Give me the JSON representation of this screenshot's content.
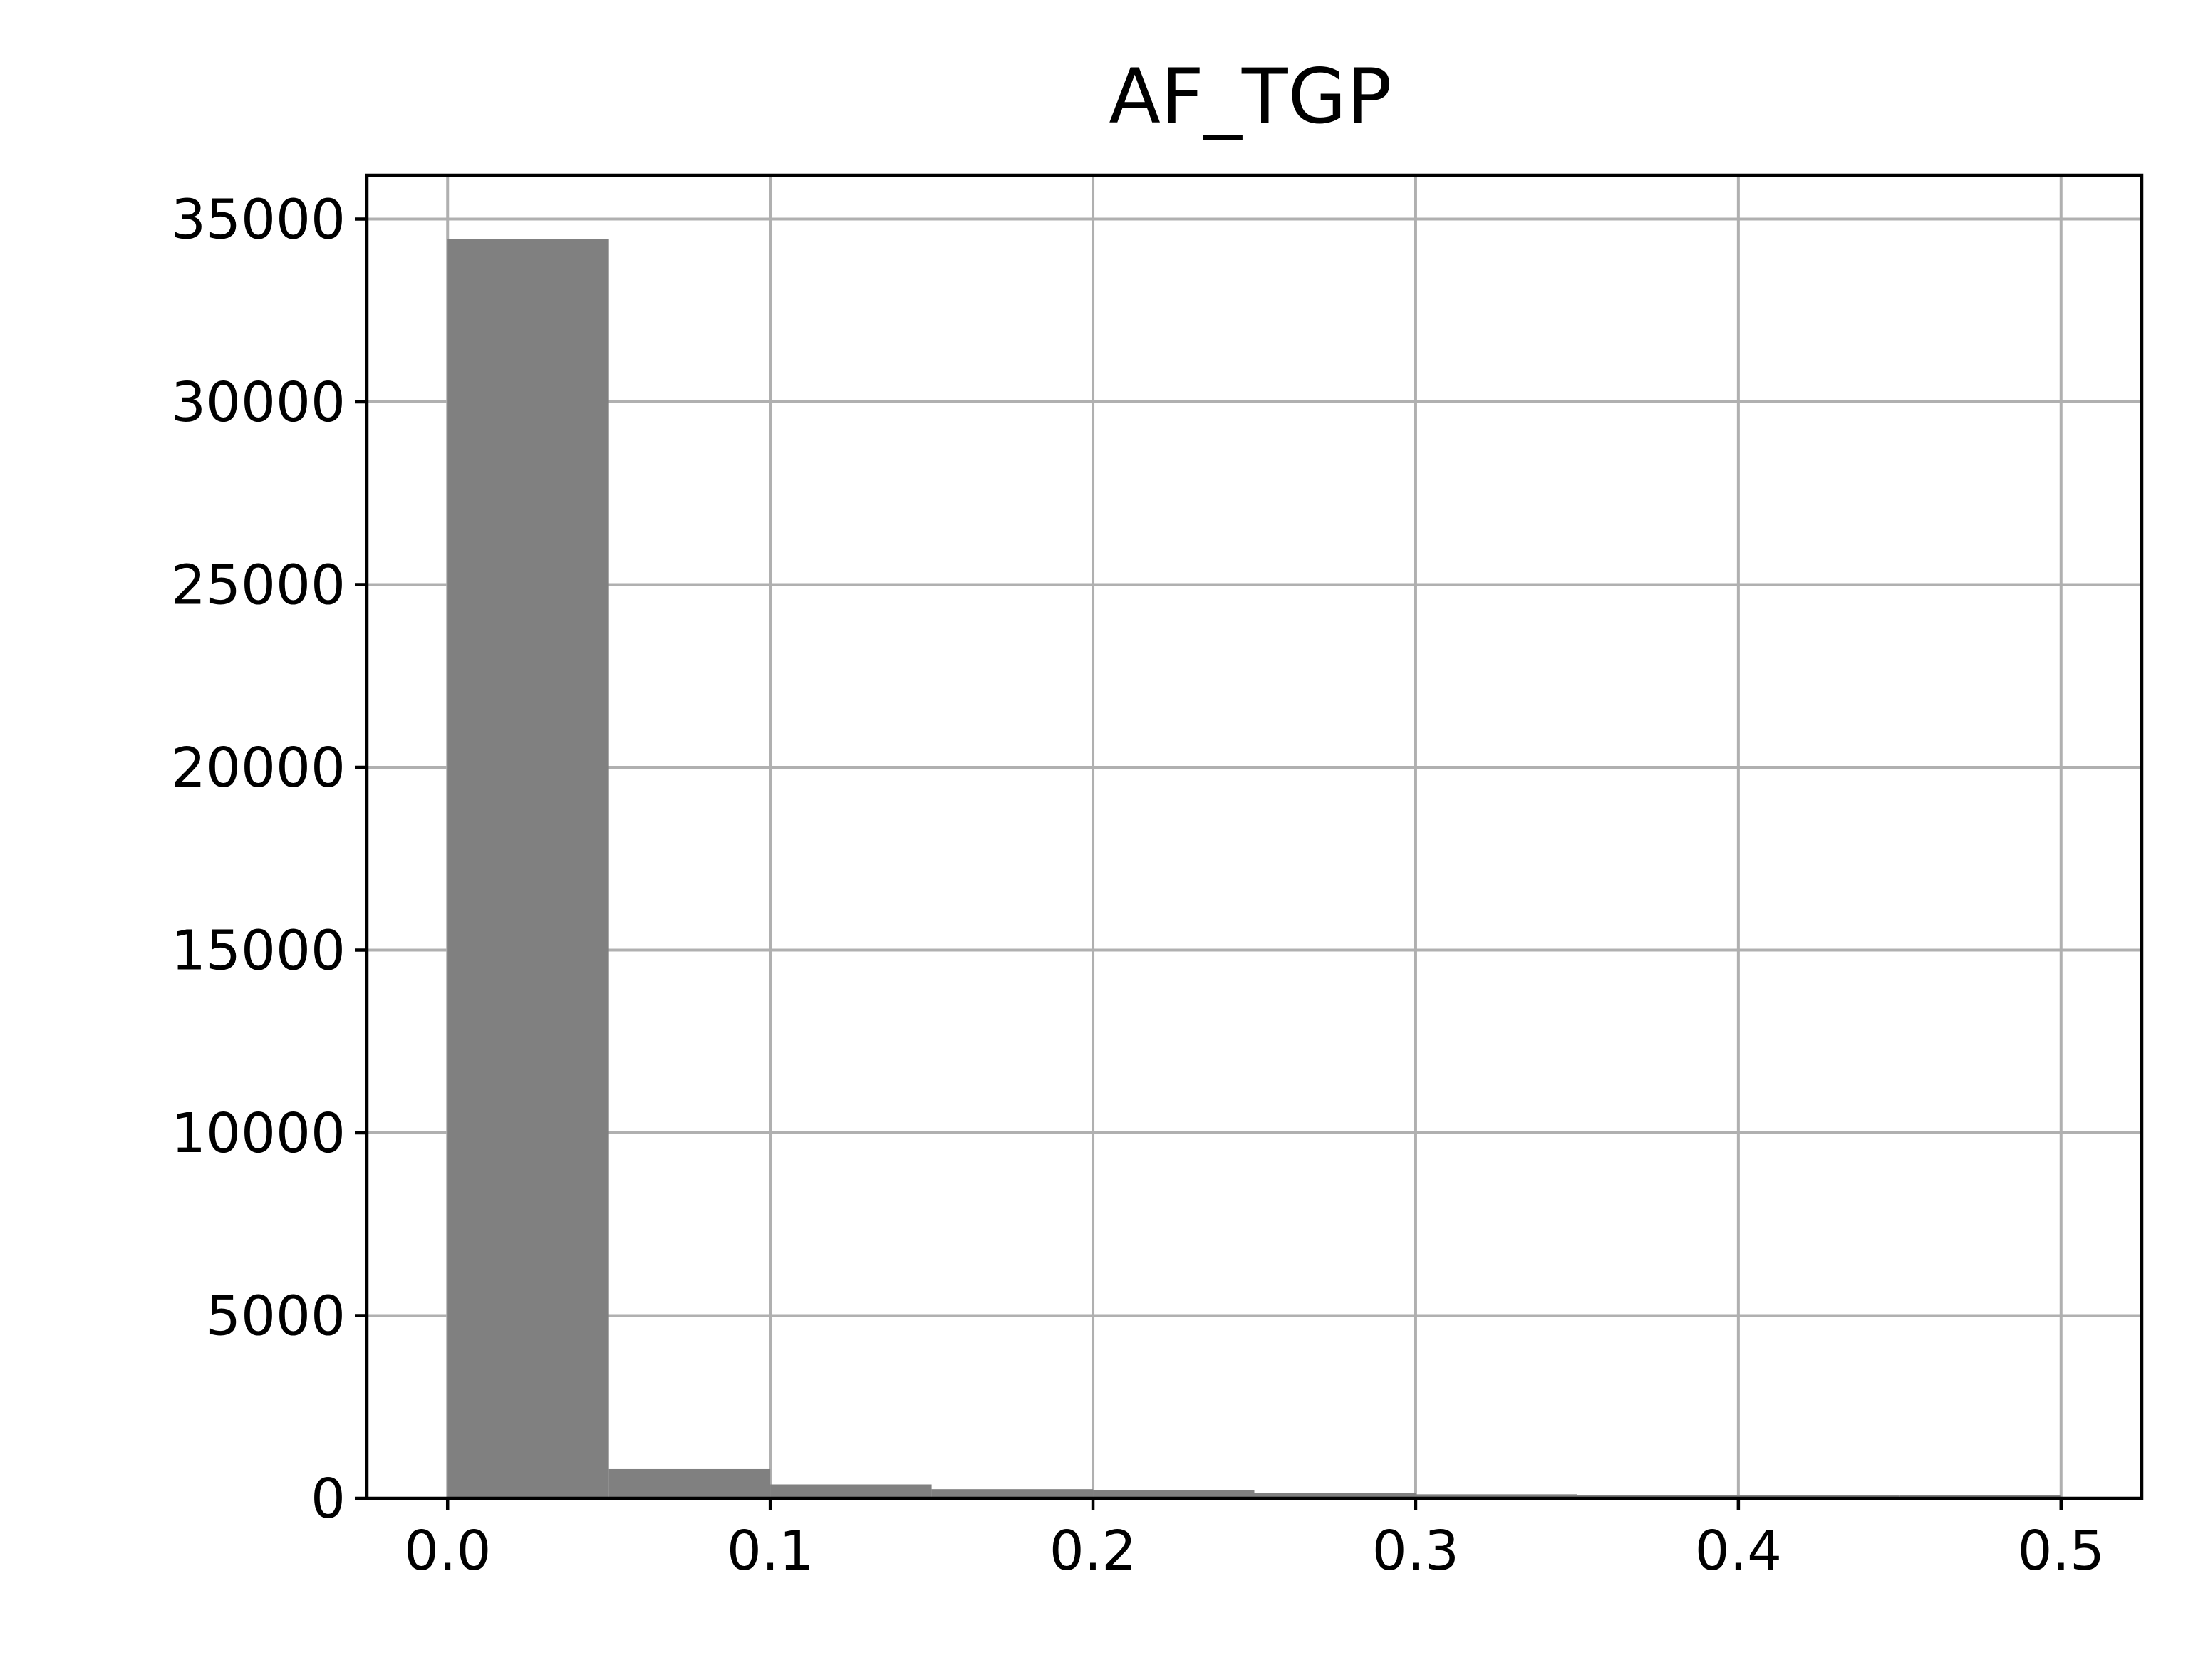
{
  "chart_data": {
    "type": "bar",
    "title": "AF_TGP",
    "xlabel": "",
    "ylabel": "",
    "bin_edges": [
      0.0,
      0.05,
      0.1,
      0.15,
      0.2,
      0.25,
      0.3,
      0.35,
      0.4,
      0.45,
      0.5
    ],
    "values": [
      34450,
      800,
      380,
      250,
      220,
      140,
      110,
      90,
      80,
      90
    ],
    "xlim": [
      -0.025,
      0.525
    ],
    "ylim": [
      0,
      36200
    ],
    "xticks": [
      0.0,
      0.1,
      0.2,
      0.3,
      0.4,
      0.5
    ],
    "xtick_labels": [
      "0.0",
      "0.1",
      "0.2",
      "0.3",
      "0.4",
      "0.5"
    ],
    "yticks": [
      0,
      5000,
      10000,
      15000,
      20000,
      25000,
      30000,
      35000
    ],
    "ytick_labels": [
      "0",
      "5000",
      "10000",
      "15000",
      "20000",
      "25000",
      "30000",
      "35000"
    ],
    "grid": true,
    "bar_color": "#808080",
    "grid_color": "#b0b0b0"
  }
}
